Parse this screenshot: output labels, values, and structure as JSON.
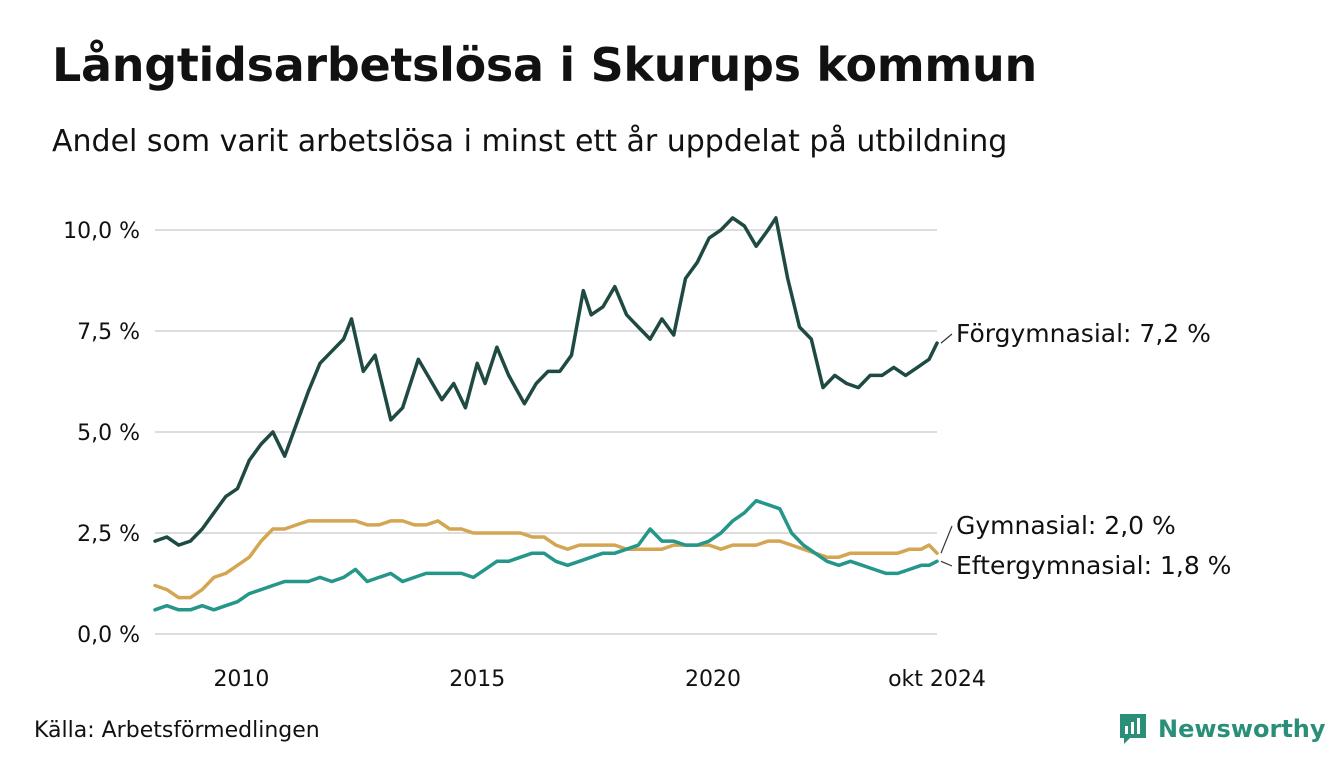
{
  "title": "Långtidsarbetslösa i Skurups kommun",
  "subtitle": "Andel som varit arbetslösa i minst ett år uppdelat på utbildning",
  "source": "Källa: Arbetsförmedlingen",
  "brand": "Newsworthy",
  "colors": {
    "forgymnasial": "#1f4a43",
    "gymnasial": "#d4a552",
    "eftergymnasial": "#24968a",
    "grid": "#dddddd",
    "brand": "#2a8f78"
  },
  "chart_data": {
    "type": "line",
    "ylim": [
      0,
      10
    ],
    "xlim": [
      "2008-03",
      "2024-10"
    ],
    "y_ticks": [
      {
        "value": 0,
        "label": "0,0 %"
      },
      {
        "value": 2.5,
        "label": "2,5 %"
      },
      {
        "value": 5,
        "label": "5,0 %"
      },
      {
        "value": 7.5,
        "label": "7,5 %"
      },
      {
        "value": 10,
        "label": "10,0 %"
      }
    ],
    "x_ticks": [
      {
        "value": "2010-01",
        "label": "2010"
      },
      {
        "value": "2015-01",
        "label": "2015"
      },
      {
        "value": "2020-01",
        "label": "2020"
      },
      {
        "value": "2024-10",
        "label": "okt 2024"
      }
    ],
    "grid": true,
    "series": [
      {
        "name": "Förgymnasial",
        "color_key": "forgymnasial",
        "end_label": "Förgymnasial: 7,2 %",
        "points": [
          [
            "2008-03",
            2.3
          ],
          [
            "2008-06",
            2.4
          ],
          [
            "2008-09",
            2.2
          ],
          [
            "2008-12",
            2.3
          ],
          [
            "2009-03",
            2.6
          ],
          [
            "2009-06",
            3.0
          ],
          [
            "2009-09",
            3.4
          ],
          [
            "2009-12",
            3.6
          ],
          [
            "2010-03",
            4.3
          ],
          [
            "2010-06",
            4.7
          ],
          [
            "2010-09",
            5.0
          ],
          [
            "2010-12",
            4.4
          ],
          [
            "2011-03",
            5.2
          ],
          [
            "2011-06",
            6.0
          ],
          [
            "2011-09",
            6.7
          ],
          [
            "2011-12",
            7.0
          ],
          [
            "2012-03",
            7.3
          ],
          [
            "2012-05",
            7.8
          ],
          [
            "2012-08",
            6.5
          ],
          [
            "2012-11",
            6.9
          ],
          [
            "2013-03",
            5.3
          ],
          [
            "2013-06",
            5.6
          ],
          [
            "2013-10",
            6.8
          ],
          [
            "2014-01",
            6.3
          ],
          [
            "2014-04",
            5.8
          ],
          [
            "2014-07",
            6.2
          ],
          [
            "2014-10",
            5.6
          ],
          [
            "2015-01",
            6.7
          ],
          [
            "2015-03",
            6.2
          ],
          [
            "2015-06",
            7.1
          ],
          [
            "2015-09",
            6.4
          ],
          [
            "2016-01",
            5.7
          ],
          [
            "2016-04",
            6.2
          ],
          [
            "2016-07",
            6.5
          ],
          [
            "2016-10",
            6.5
          ],
          [
            "2017-01",
            6.9
          ],
          [
            "2017-04",
            8.5
          ],
          [
            "2017-06",
            7.9
          ],
          [
            "2017-09",
            8.1
          ],
          [
            "2017-12",
            8.6
          ],
          [
            "2018-03",
            7.9
          ],
          [
            "2018-06",
            7.6
          ],
          [
            "2018-09",
            7.3
          ],
          [
            "2018-12",
            7.8
          ],
          [
            "2019-03",
            7.4
          ],
          [
            "2019-06",
            8.8
          ],
          [
            "2019-09",
            9.2
          ],
          [
            "2019-12",
            9.8
          ],
          [
            "2020-03",
            10.0
          ],
          [
            "2020-06",
            10.3
          ],
          [
            "2020-09",
            10.1
          ],
          [
            "2020-12",
            9.6
          ],
          [
            "2021-03",
            10.0
          ],
          [
            "2021-05",
            10.3
          ],
          [
            "2021-08",
            8.8
          ],
          [
            "2021-11",
            7.6
          ],
          [
            "2022-02",
            7.3
          ],
          [
            "2022-05",
            6.1
          ],
          [
            "2022-08",
            6.4
          ],
          [
            "2022-11",
            6.2
          ],
          [
            "2023-02",
            6.1
          ],
          [
            "2023-05",
            6.4
          ],
          [
            "2023-08",
            6.4
          ],
          [
            "2023-11",
            6.6
          ],
          [
            "2024-02",
            6.4
          ],
          [
            "2024-05",
            6.6
          ],
          [
            "2024-08",
            6.8
          ],
          [
            "2024-10",
            7.2
          ]
        ]
      },
      {
        "name": "Gymnasial",
        "color_key": "gymnasial",
        "end_label": "Gymnasial: 2,0 %",
        "points": [
          [
            "2008-03",
            1.2
          ],
          [
            "2008-06",
            1.1
          ],
          [
            "2008-09",
            0.9
          ],
          [
            "2008-12",
            0.9
          ],
          [
            "2009-03",
            1.1
          ],
          [
            "2009-06",
            1.4
          ],
          [
            "2009-09",
            1.5
          ],
          [
            "2009-12",
            1.7
          ],
          [
            "2010-03",
            1.9
          ],
          [
            "2010-06",
            2.3
          ],
          [
            "2010-09",
            2.6
          ],
          [
            "2010-12",
            2.6
          ],
          [
            "2011-03",
            2.7
          ],
          [
            "2011-06",
            2.8
          ],
          [
            "2011-09",
            2.8
          ],
          [
            "2011-12",
            2.8
          ],
          [
            "2012-03",
            2.8
          ],
          [
            "2012-06",
            2.8
          ],
          [
            "2012-09",
            2.7
          ],
          [
            "2012-12",
            2.7
          ],
          [
            "2013-03",
            2.8
          ],
          [
            "2013-06",
            2.8
          ],
          [
            "2013-09",
            2.7
          ],
          [
            "2013-12",
            2.7
          ],
          [
            "2014-03",
            2.8
          ],
          [
            "2014-06",
            2.6
          ],
          [
            "2014-09",
            2.6
          ],
          [
            "2014-12",
            2.5
          ],
          [
            "2015-03",
            2.5
          ],
          [
            "2015-06",
            2.5
          ],
          [
            "2015-09",
            2.5
          ],
          [
            "2015-12",
            2.5
          ],
          [
            "2016-03",
            2.4
          ],
          [
            "2016-06",
            2.4
          ],
          [
            "2016-09",
            2.2
          ],
          [
            "2016-12",
            2.1
          ],
          [
            "2017-03",
            2.2
          ],
          [
            "2017-06",
            2.2
          ],
          [
            "2017-09",
            2.2
          ],
          [
            "2017-12",
            2.2
          ],
          [
            "2018-03",
            2.1
          ],
          [
            "2018-06",
            2.1
          ],
          [
            "2018-09",
            2.1
          ],
          [
            "2018-12",
            2.1
          ],
          [
            "2019-03",
            2.2
          ],
          [
            "2019-06",
            2.2
          ],
          [
            "2019-09",
            2.2
          ],
          [
            "2019-12",
            2.2
          ],
          [
            "2020-03",
            2.1
          ],
          [
            "2020-06",
            2.2
          ],
          [
            "2020-09",
            2.2
          ],
          [
            "2020-12",
            2.2
          ],
          [
            "2021-03",
            2.3
          ],
          [
            "2021-06",
            2.3
          ],
          [
            "2021-09",
            2.2
          ],
          [
            "2021-12",
            2.1
          ],
          [
            "2022-03",
            2.0
          ],
          [
            "2022-06",
            1.9
          ],
          [
            "2022-09",
            1.9
          ],
          [
            "2022-12",
            2.0
          ],
          [
            "2023-03",
            2.0
          ],
          [
            "2023-06",
            2.0
          ],
          [
            "2023-09",
            2.0
          ],
          [
            "2023-12",
            2.0
          ],
          [
            "2024-03",
            2.1
          ],
          [
            "2024-06",
            2.1
          ],
          [
            "2024-08",
            2.2
          ],
          [
            "2024-10",
            2.0
          ]
        ]
      },
      {
        "name": "Eftergymnasial",
        "color_key": "eftergymnasial",
        "end_label": "Eftergymnasial: 1,8 %",
        "points": [
          [
            "2008-03",
            0.6
          ],
          [
            "2008-06",
            0.7
          ],
          [
            "2008-09",
            0.6
          ],
          [
            "2008-12",
            0.6
          ],
          [
            "2009-03",
            0.7
          ],
          [
            "2009-06",
            0.6
          ],
          [
            "2009-09",
            0.7
          ],
          [
            "2009-12",
            0.8
          ],
          [
            "2010-03",
            1.0
          ],
          [
            "2010-06",
            1.1
          ],
          [
            "2010-09",
            1.2
          ],
          [
            "2010-12",
            1.3
          ],
          [
            "2011-03",
            1.3
          ],
          [
            "2011-06",
            1.3
          ],
          [
            "2011-09",
            1.4
          ],
          [
            "2011-12",
            1.3
          ],
          [
            "2012-03",
            1.4
          ],
          [
            "2012-06",
            1.6
          ],
          [
            "2012-09",
            1.3
          ],
          [
            "2012-12",
            1.4
          ],
          [
            "2013-03",
            1.5
          ],
          [
            "2013-06",
            1.3
          ],
          [
            "2013-09",
            1.4
          ],
          [
            "2013-12",
            1.5
          ],
          [
            "2014-03",
            1.5
          ],
          [
            "2014-06",
            1.5
          ],
          [
            "2014-09",
            1.5
          ],
          [
            "2014-12",
            1.4
          ],
          [
            "2015-03",
            1.6
          ],
          [
            "2015-06",
            1.8
          ],
          [
            "2015-09",
            1.8
          ],
          [
            "2015-12",
            1.9
          ],
          [
            "2016-03",
            2.0
          ],
          [
            "2016-06",
            2.0
          ],
          [
            "2016-09",
            1.8
          ],
          [
            "2016-12",
            1.7
          ],
          [
            "2017-03",
            1.8
          ],
          [
            "2017-06",
            1.9
          ],
          [
            "2017-09",
            2.0
          ],
          [
            "2017-12",
            2.0
          ],
          [
            "2018-03",
            2.1
          ],
          [
            "2018-06",
            2.2
          ],
          [
            "2018-09",
            2.6
          ],
          [
            "2018-12",
            2.3
          ],
          [
            "2019-03",
            2.3
          ],
          [
            "2019-06",
            2.2
          ],
          [
            "2019-09",
            2.2
          ],
          [
            "2019-12",
            2.3
          ],
          [
            "2020-03",
            2.5
          ],
          [
            "2020-06",
            2.8
          ],
          [
            "2020-09",
            3.0
          ],
          [
            "2020-12",
            3.3
          ],
          [
            "2021-03",
            3.2
          ],
          [
            "2021-06",
            3.1
          ],
          [
            "2021-09",
            2.5
          ],
          [
            "2021-12",
            2.2
          ],
          [
            "2022-03",
            2.0
          ],
          [
            "2022-06",
            1.8
          ],
          [
            "2022-09",
            1.7
          ],
          [
            "2022-12",
            1.8
          ],
          [
            "2023-03",
            1.7
          ],
          [
            "2023-06",
            1.6
          ],
          [
            "2023-09",
            1.5
          ],
          [
            "2023-12",
            1.5
          ],
          [
            "2024-03",
            1.6
          ],
          [
            "2024-06",
            1.7
          ],
          [
            "2024-08",
            1.7
          ],
          [
            "2024-10",
            1.8
          ]
        ]
      }
    ]
  }
}
